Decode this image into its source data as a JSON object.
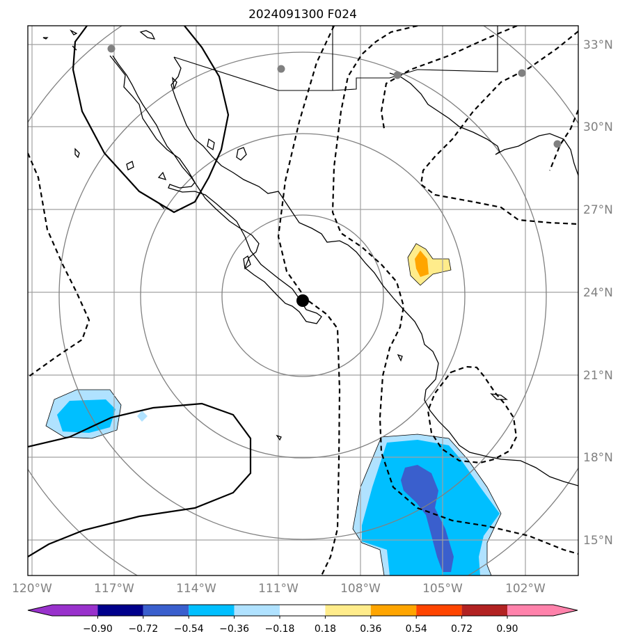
{
  "title": "2024091300 F024",
  "lat_labels": [
    "33°N",
    "30°N",
    "27°N",
    "24°N",
    "21°N",
    "18°N",
    "15°N"
  ],
  "lon_labels": [
    "120°W",
    "117°W",
    "114°W",
    "111°W",
    "108°W",
    "105°W",
    "102°W"
  ],
  "colorbar": {
    "ticks": [
      "−0.90",
      "−0.72",
      "−0.54",
      "−0.36",
      "−0.18",
      "0.18",
      "0.36",
      "0.54",
      "0.72",
      "0.90"
    ],
    "colors": [
      "#9932cc",
      "#00008b",
      "#3a5fcd",
      "#00bfff",
      "#b0e2ff",
      "#ffffff",
      "#ffec8b",
      "#ffa500",
      "#ff4500",
      "#b22222",
      "#ff82ab"
    ]
  },
  "storm_center": {
    "lat": 23.7,
    "lon": -110.0
  }
}
